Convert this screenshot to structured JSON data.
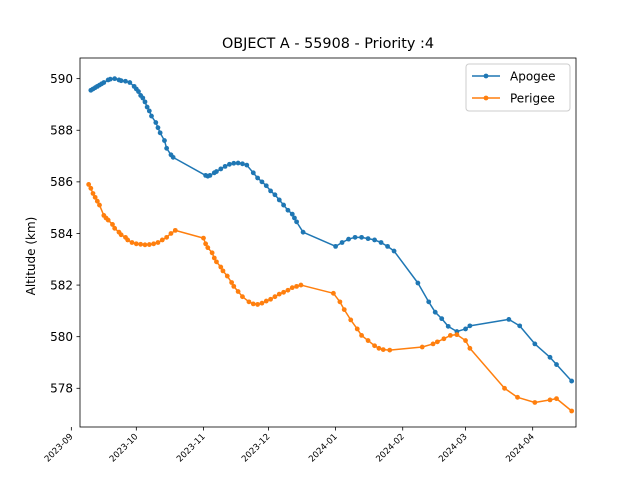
{
  "chart_data": {
    "type": "line",
    "title": "OBJECT A - 55908 - Priority :4",
    "xlabel": "",
    "ylabel": "Altitude (km)",
    "x_type": "date",
    "xlim": [
      "2023-09-05",
      "2024-04-21"
    ],
    "ylim": [
      576.5,
      590.8
    ],
    "x_ticks": [
      "2023-09",
      "2023-10",
      "2023-11",
      "2023-12",
      "2024-01",
      "2024-02",
      "2024-03",
      "2024-04"
    ],
    "y_ticks": [
      578,
      580,
      582,
      584,
      586,
      588,
      590
    ],
    "grid": false,
    "legend_position": "top-right",
    "series": [
      {
        "name": "Apogee",
        "color": "#1f77b4",
        "marker": "circle",
        "points": [
          [
            "2023-09-10",
            589.55
          ],
          [
            "2023-09-11",
            589.6
          ],
          [
            "2023-09-12",
            589.65
          ],
          [
            "2023-09-13",
            589.7
          ],
          [
            "2023-09-14",
            589.75
          ],
          [
            "2023-09-15",
            589.8
          ],
          [
            "2023-09-16",
            589.85
          ],
          [
            "2023-09-18",
            589.95
          ],
          [
            "2023-09-19",
            589.98
          ],
          [
            "2023-09-21",
            590.0
          ],
          [
            "2023-09-23",
            589.95
          ],
          [
            "2023-09-24",
            589.92
          ],
          [
            "2023-09-26",
            589.9
          ],
          [
            "2023-09-28",
            589.85
          ],
          [
            "2023-09-30",
            589.7
          ],
          [
            "2023-10-01",
            589.6
          ],
          [
            "2023-10-02",
            589.5
          ],
          [
            "2023-10-03",
            589.35
          ],
          [
            "2023-10-04",
            589.25
          ],
          [
            "2023-10-05",
            589.1
          ],
          [
            "2023-10-06",
            588.9
          ],
          [
            "2023-10-07",
            588.75
          ],
          [
            "2023-10-08",
            588.55
          ],
          [
            "2023-10-10",
            588.3
          ],
          [
            "2023-10-11",
            588.1
          ],
          [
            "2023-10-12",
            587.9
          ],
          [
            "2023-10-14",
            587.6
          ],
          [
            "2023-10-15",
            587.3
          ],
          [
            "2023-10-17",
            587.05
          ],
          [
            "2023-10-18",
            586.95
          ],
          [
            "2023-11-02",
            586.25
          ],
          [
            "2023-11-03",
            586.22
          ],
          [
            "2023-11-04",
            586.25
          ],
          [
            "2023-11-06",
            586.35
          ],
          [
            "2023-11-07",
            586.4
          ],
          [
            "2023-11-09",
            586.5
          ],
          [
            "2023-11-11",
            586.6
          ],
          [
            "2023-11-13",
            586.68
          ],
          [
            "2023-11-15",
            586.72
          ],
          [
            "2023-11-17",
            586.73
          ],
          [
            "2023-11-19",
            586.7
          ],
          [
            "2023-11-21",
            586.65
          ],
          [
            "2023-11-24",
            586.35
          ],
          [
            "2023-11-26",
            586.15
          ],
          [
            "2023-11-28",
            586.0
          ],
          [
            "2023-11-30",
            585.85
          ],
          [
            "2023-12-02",
            585.65
          ],
          [
            "2023-12-04",
            585.5
          ],
          [
            "2023-12-06",
            585.3
          ],
          [
            "2023-12-08",
            585.1
          ],
          [
            "2023-12-10",
            584.9
          ],
          [
            "2023-12-12",
            584.75
          ],
          [
            "2023-12-13",
            584.6
          ],
          [
            "2023-12-14",
            584.45
          ],
          [
            "2023-12-17",
            584.05
          ],
          [
            "2024-01-01",
            583.5
          ],
          [
            "2024-01-04",
            583.65
          ],
          [
            "2024-01-07",
            583.78
          ],
          [
            "2024-01-10",
            583.85
          ],
          [
            "2024-01-13",
            583.85
          ],
          [
            "2024-01-16",
            583.8
          ],
          [
            "2024-01-19",
            583.75
          ],
          [
            "2024-01-22",
            583.65
          ],
          [
            "2024-01-25",
            583.5
          ],
          [
            "2024-01-28",
            583.32
          ],
          [
            "2024-02-08",
            582.08
          ],
          [
            "2024-02-13",
            581.35
          ],
          [
            "2024-02-16",
            580.95
          ],
          [
            "2024-02-19",
            580.7
          ],
          [
            "2024-02-22",
            580.4
          ],
          [
            "2024-02-26",
            580.2
          ],
          [
            "2024-03-01",
            580.3
          ],
          [
            "2024-03-03",
            580.42
          ],
          [
            "2024-03-21",
            580.67
          ],
          [
            "2024-03-26",
            580.42
          ],
          [
            "2024-04-02",
            579.72
          ],
          [
            "2024-04-09",
            579.2
          ],
          [
            "2024-04-12",
            578.92
          ],
          [
            "2024-04-19",
            578.28
          ]
        ]
      },
      {
        "name": "Perigee",
        "color": "#ff7f0e",
        "marker": "circle",
        "points": [
          [
            "2023-09-09",
            585.9
          ],
          [
            "2023-09-10",
            585.75
          ],
          [
            "2023-09-11",
            585.55
          ],
          [
            "2023-09-12",
            585.4
          ],
          [
            "2023-09-13",
            585.25
          ],
          [
            "2023-09-14",
            585.1
          ],
          [
            "2023-09-16",
            584.7
          ],
          [
            "2023-09-17",
            584.6
          ],
          [
            "2023-09-18",
            584.52
          ],
          [
            "2023-09-20",
            584.35
          ],
          [
            "2023-09-21",
            584.2
          ],
          [
            "2023-09-23",
            584.05
          ],
          [
            "2023-09-24",
            583.95
          ],
          [
            "2023-09-26",
            583.85
          ],
          [
            "2023-09-27",
            583.75
          ],
          [
            "2023-09-29",
            583.65
          ],
          [
            "2023-10-01",
            583.6
          ],
          [
            "2023-10-03",
            583.58
          ],
          [
            "2023-10-05",
            583.56
          ],
          [
            "2023-10-07",
            583.57
          ],
          [
            "2023-10-09",
            583.6
          ],
          [
            "2023-10-11",
            583.65
          ],
          [
            "2023-10-13",
            583.75
          ],
          [
            "2023-10-15",
            583.85
          ],
          [
            "2023-10-17",
            584.0
          ],
          [
            "2023-10-19",
            584.12
          ],
          [
            "2023-11-01",
            583.82
          ],
          [
            "2023-11-02",
            583.6
          ],
          [
            "2023-11-03",
            583.45
          ],
          [
            "2023-11-05",
            583.25
          ],
          [
            "2023-11-06",
            583.05
          ],
          [
            "2023-11-07",
            582.9
          ],
          [
            "2023-11-09",
            582.7
          ],
          [
            "2023-11-10",
            582.55
          ],
          [
            "2023-11-12",
            582.35
          ],
          [
            "2023-11-14",
            582.1
          ],
          [
            "2023-11-15",
            581.95
          ],
          [
            "2023-11-17",
            581.75
          ],
          [
            "2023-11-19",
            581.55
          ],
          [
            "2023-11-22",
            581.35
          ],
          [
            "2023-11-24",
            581.27
          ],
          [
            "2023-11-26",
            581.25
          ],
          [
            "2023-11-28",
            581.3
          ],
          [
            "2023-11-30",
            581.38
          ],
          [
            "2023-12-02",
            581.45
          ],
          [
            "2023-12-04",
            581.55
          ],
          [
            "2023-12-06",
            581.65
          ],
          [
            "2023-12-08",
            581.72
          ],
          [
            "2023-12-10",
            581.8
          ],
          [
            "2023-12-12",
            581.9
          ],
          [
            "2023-12-14",
            581.95
          ],
          [
            "2023-12-16",
            582.0
          ],
          [
            "2023-12-31",
            581.68
          ],
          [
            "2024-01-03",
            581.35
          ],
          [
            "2024-01-05",
            581.05
          ],
          [
            "2024-01-08",
            580.65
          ],
          [
            "2024-01-11",
            580.3
          ],
          [
            "2024-01-13",
            580.05
          ],
          [
            "2024-01-16",
            579.85
          ],
          [
            "2024-01-19",
            579.65
          ],
          [
            "2024-01-21",
            579.55
          ],
          [
            "2024-01-23",
            579.5
          ],
          [
            "2024-01-26",
            579.48
          ],
          [
            "2024-02-10",
            579.6
          ],
          [
            "2024-02-15",
            579.72
          ],
          [
            "2024-02-17",
            579.8
          ],
          [
            "2024-02-20",
            579.92
          ],
          [
            "2024-02-23",
            580.05
          ],
          [
            "2024-02-26",
            580.08
          ],
          [
            "2024-03-01",
            579.85
          ],
          [
            "2024-03-03",
            579.55
          ],
          [
            "2024-03-19",
            578.0
          ],
          [
            "2024-03-25",
            577.65
          ],
          [
            "2024-04-02",
            577.45
          ],
          [
            "2024-04-09",
            577.55
          ],
          [
            "2024-04-12",
            577.6
          ],
          [
            "2024-04-19",
            577.12
          ]
        ]
      }
    ]
  }
}
